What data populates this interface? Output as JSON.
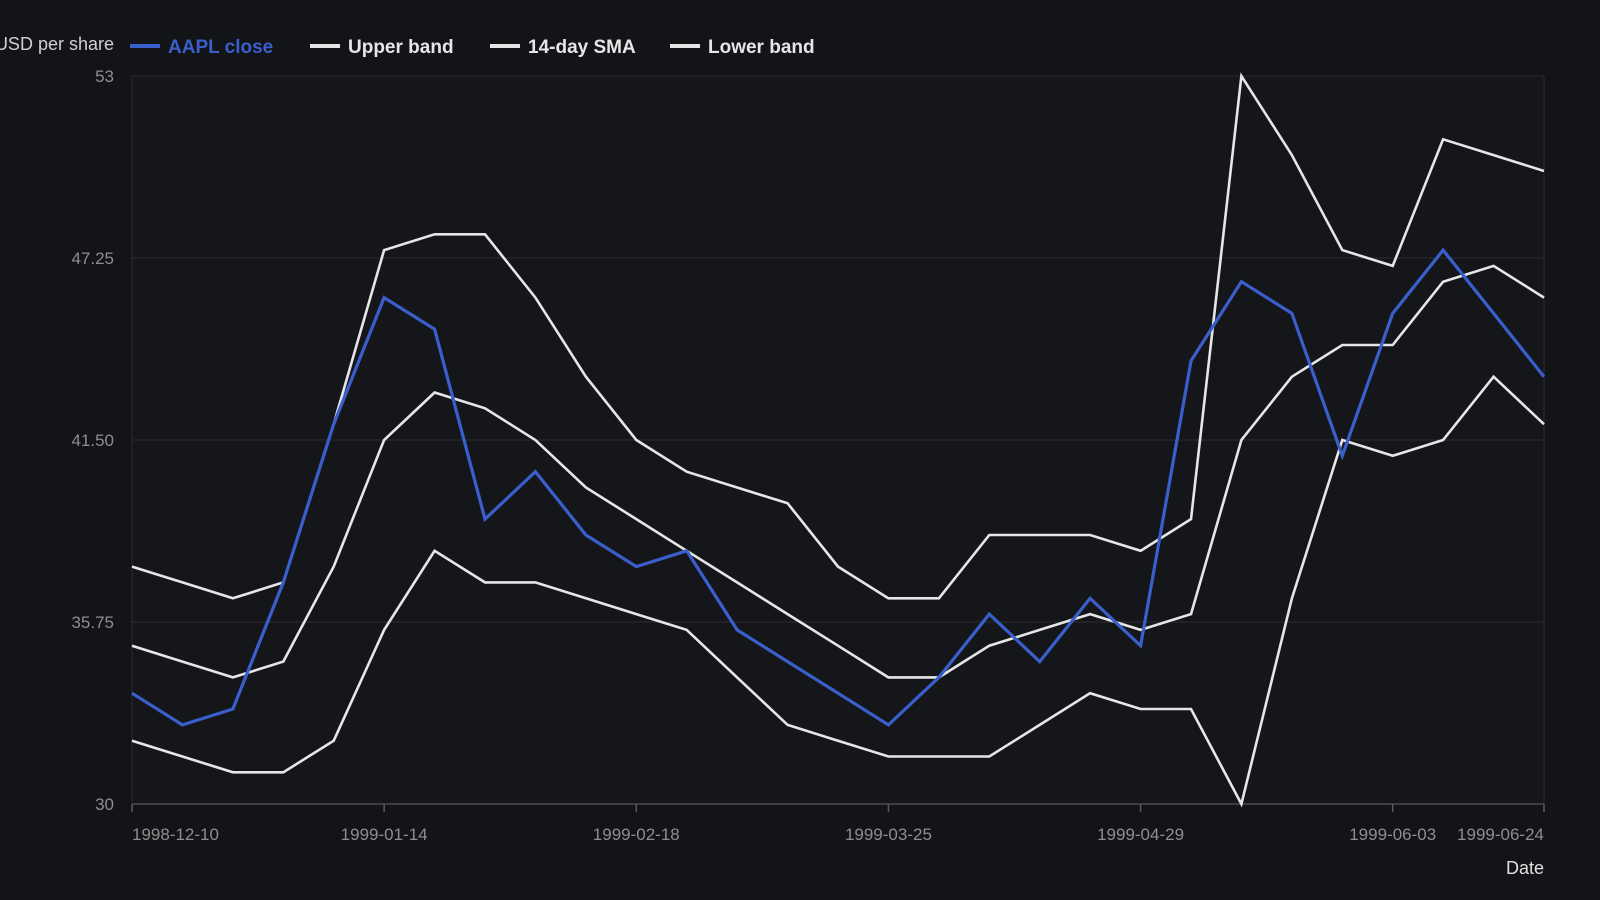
{
  "chart_data": {
    "type": "line",
    "ylabel": "USD per share",
    "xlabel": "Date",
    "ylim": [
      30,
      53
    ],
    "y_ticks": [
      "30",
      "35.75",
      "41.50",
      "47.25",
      "53"
    ],
    "x_ticks": [
      "1998-12-10",
      "1999-01-14",
      "1999-02-18",
      "1999-03-25",
      "1999-04-29",
      "1999-06-03",
      "1999-06-24"
    ],
    "x": [
      "1998-12-10",
      "1998-12-17",
      "1998-12-24",
      "1998-12-31",
      "1999-01-07",
      "1999-01-14",
      "1999-01-21",
      "1999-01-28",
      "1999-02-04",
      "1999-02-11",
      "1999-02-18",
      "1999-02-25",
      "1999-03-04",
      "1999-03-11",
      "1999-03-18",
      "1999-03-25",
      "1999-04-01",
      "1999-04-08",
      "1999-04-15",
      "1999-04-22",
      "1999-04-29",
      "1999-05-06",
      "1999-05-13",
      "1999-05-20",
      "1999-05-27",
      "1999-06-03",
      "1999-06-10",
      "1999-06-17",
      "1999-06-24"
    ],
    "grid": true,
    "legend_position": "top-left",
    "series": [
      {
        "name": "AAPL close",
        "color": "#3a5fcd",
        "values": [
          33.5,
          32.5,
          33.0,
          37.0,
          42.0,
          46.0,
          45.0,
          39.0,
          40.5,
          38.5,
          37.5,
          38.0,
          35.5,
          34.5,
          33.5,
          32.5,
          34.0,
          36.0,
          34.5,
          36.5,
          35.0,
          44.0,
          46.5,
          45.5,
          41.0,
          45.5,
          47.5,
          45.5,
          43.5
        ]
      },
      {
        "name": "Upper band",
        "color": "#e6e6e6",
        "values": [
          37.5,
          37.0,
          36.5,
          37.0,
          42.0,
          47.5,
          48.0,
          48.0,
          46.0,
          43.5,
          41.5,
          40.5,
          40.0,
          39.5,
          37.5,
          36.5,
          36.5,
          38.5,
          38.5,
          38.5,
          38.0,
          39.0,
          53.0,
          50.5,
          47.5,
          47.0,
          51.0,
          50.5,
          50.0
        ]
      },
      {
        "name": "14-day SMA",
        "color": "#e6e6e6",
        "values": [
          35.0,
          34.5,
          34.0,
          34.5,
          37.5,
          41.5,
          43.0,
          42.5,
          41.5,
          40.0,
          39.0,
          38.0,
          37.0,
          36.0,
          35.0,
          34.0,
          34.0,
          35.0,
          35.5,
          36.0,
          35.5,
          36.0,
          41.5,
          43.5,
          44.5,
          44.5,
          46.5,
          47.0,
          46.0
        ]
      },
      {
        "name": "Lower band",
        "color": "#e6e6e6",
        "values": [
          32.0,
          31.5,
          31.0,
          31.0,
          32.0,
          35.5,
          38.0,
          37.0,
          37.0,
          36.5,
          36.0,
          35.5,
          34.0,
          32.5,
          32.0,
          31.5,
          31.5,
          31.5,
          32.5,
          33.5,
          33.0,
          33.0,
          30.0,
          36.5,
          41.5,
          41.0,
          41.5,
          43.5,
          42.0
        ]
      }
    ]
  }
}
